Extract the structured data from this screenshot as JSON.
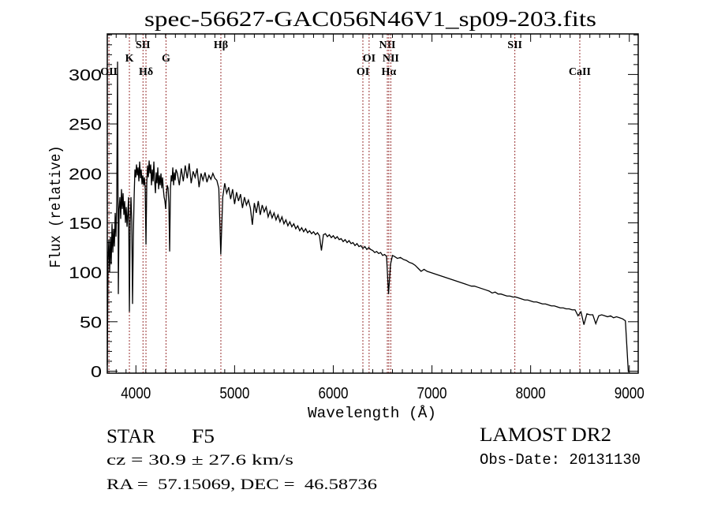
{
  "chart_data": {
    "type": "line",
    "title": "spec-56627-GAC056N46V1_sp09-203.fits",
    "xlabel": "Wavelength (Å)",
    "ylabel": "Flux (relative)",
    "xlim": [
      3710,
      9090
    ],
    "ylim": [
      -2,
      341
    ],
    "x_ticks": [
      4000,
      5000,
      6000,
      7000,
      8000,
      9000
    ],
    "y_ticks": [
      0,
      50,
      100,
      150,
      200,
      250,
      300
    ],
    "x_minor_step": 100,
    "y_minor_step": 10,
    "grid": false,
    "legend": null,
    "series": [
      {
        "name": "flux",
        "color": "#000000",
        "segments": [
          {
            "wavelength_start": 3710,
            "wavelength_step": 8,
            "flux": [
              6,
              112,
              133,
              100,
              136,
              108,
              149,
              120,
              144,
              126,
              160,
              136,
              172,
              313,
              78,
              164,
              176,
              154,
              184,
              164,
              180,
              158,
              172,
              150,
              166,
              146,
              160,
              176,
              60,
              150,
              176,
              152,
              68,
              136,
              176,
              204,
              196,
              209,
              198,
              206,
              192,
              212,
              195,
              204,
              189,
              198,
              188,
              196,
              185,
              128,
              190,
              208,
              196,
              213,
              200,
              209,
              188,
              204,
              192,
              212,
              193,
              180,
              201,
              190,
              206,
              184,
              198,
              188,
              200,
              185,
              196,
              184,
              176,
              172,
              164,
              180,
              188,
              185,
              170,
              121,
              184,
              198,
              192,
              206,
              188,
              201,
              193,
              204
            ]
          },
          {
            "wavelength_start": 4420,
            "wavelength_step": 20,
            "flux": [
              200,
              188,
              205,
              192,
              208,
              195,
              210,
              190,
              202,
              196,
              205,
              186,
              200,
              193,
              201,
              191,
              198,
              194,
              200,
              195,
              193,
              185,
              118,
              176,
              190,
              180,
              186,
              174,
              184,
              169,
              181,
              172,
              179,
              165,
              176,
              168,
              173,
              165,
              148,
              170,
              160,
              172,
              158,
              168,
              161,
              166,
              156,
              162,
              155,
              160,
              153,
              158,
              151,
              156,
              149,
              153,
              147,
              151,
              146,
              149,
              144,
              147,
              142,
              145,
              141,
              144,
              140,
              142,
              139,
              141,
              138,
              140,
              137,
              122,
              138,
              139,
              136,
              138,
              135,
              137,
              134,
              136,
              133,
              134,
              131,
              133,
              130,
              132,
              129,
              130,
              127,
              129,
              126,
              127,
              124,
              126,
              123,
              125,
              123,
              122,
              120,
              121,
              119,
              120,
              117,
              118,
              116,
              78,
              108,
              117
            ]
          },
          {
            "wavelength_start": 6620,
            "wavelength_step": 30,
            "flux": [
              116,
              114,
              115,
              113,
              112,
              110,
              109,
              107,
              104,
              101,
              103,
              101,
              100,
              99,
              98,
              97,
              96,
              95,
              94,
              93,
              92,
              91,
              90,
              89,
              88,
              87,
              86,
              86,
              85,
              84,
              83,
              82,
              81,
              79,
              80,
              78,
              78,
              77,
              76,
              76,
              75,
              75,
              74,
              73,
              72,
              72,
              71,
              70,
              70,
              69,
              68,
              68,
              67,
              66,
              66,
              65,
              64,
              64,
              63,
              63,
              62,
              62,
              56,
              60,
              47,
              58,
              57,
              57,
              48,
              56,
              57,
              56,
              55,
              56,
              54,
              55,
              54,
              53,
              51,
              -1
            ]
          }
        ]
      }
    ],
    "marker_color": "#993333",
    "line_markers": [
      {
        "label": "OII",
        "wavelength": 3727
      },
      {
        "label": "K",
        "wavelength": 3934
      },
      {
        "label": "SII",
        "wavelength": 4072
      },
      {
        "label": "Hδ",
        "wavelength": 4102
      },
      {
        "label": "G",
        "wavelength": 4305
      },
      {
        "label": "Hβ",
        "wavelength": 4861
      },
      {
        "label": "OI",
        "wavelength": 6300
      },
      {
        "label": "OI",
        "wavelength": 6363
      },
      {
        "label": "NII",
        "wavelength": 6548
      },
      {
        "label": "Hα",
        "wavelength": 6563
      },
      {
        "label": "NII",
        "wavelength": 6583
      },
      {
        "label": "SII",
        "wavelength": 7840
      },
      {
        "label": "CaII",
        "wavelength": 8498
      }
    ],
    "annotations": {
      "object_class": "STAR",
      "subclass": "F5",
      "redshift": "cz = 30.9 ± 27.6 km/s",
      "coordinates": "RA =  57.15069, DEC =  46.58736",
      "survey": "LAMOST DR2",
      "obs_date": "Obs-Date: 20131130"
    }
  }
}
